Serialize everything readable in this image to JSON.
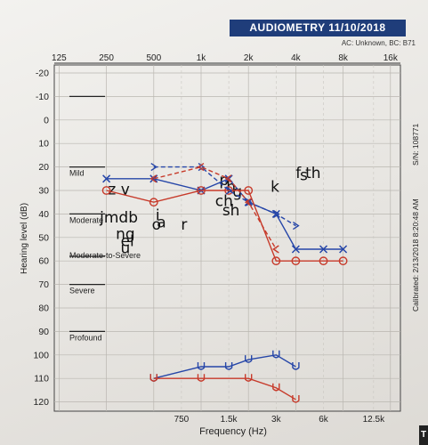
{
  "header": {
    "title": "AUDIOMETRY  11/10/2018",
    "transducer": "AC: Unknown, BC: B71"
  },
  "side": {
    "serial": "S/N: 108771",
    "calibrated": "Calibrated: 2/13/2018 8:20:48 AM"
  },
  "edge_badge": "T",
  "chart_data": {
    "type": "line",
    "xlabel": "Frequency (Hz)",
    "ylabel": "Hearing level (dB)",
    "ylim": [
      -20,
      120
    ],
    "y_reversed": true,
    "y_ticks": [
      -20,
      -10,
      0,
      10,
      20,
      30,
      40,
      50,
      60,
      70,
      80,
      90,
      100,
      110,
      120
    ],
    "x_scale": "log",
    "x_ticks_top": [
      "125",
      "250",
      "500",
      "1k",
      "2k",
      "4k",
      "8k",
      "16k"
    ],
    "x_ticks_bottom": [
      "750",
      "1.5k",
      "3k",
      "6k",
      "12.5k"
    ],
    "grid": true,
    "regions": [
      {
        "label": "Mild",
        "db": 20
      },
      {
        "label": "Moderate",
        "db": 40
      },
      {
        "label": "Moderate-to-Severe",
        "db": 55
      },
      {
        "label": "Severe",
        "db": 70
      },
      {
        "label": "Profound",
        "db": 90
      }
    ],
    "speech_letters": [
      {
        "text": "z v",
        "hz": 300,
        "db": 29
      },
      {
        "text": "jmdb",
        "hz": 300,
        "db": 41
      },
      {
        "text": "ng",
        "hz": 330,
        "db": 48
      },
      {
        "text": "el",
        "hz": 340,
        "db": 51
      },
      {
        "text": "u",
        "hz": 330,
        "db": 54
      },
      {
        "text": "i",
        "hz": 530,
        "db": 40
      },
      {
        "text": "o",
        "hz": 520,
        "db": 44
      },
      {
        "text": "a",
        "hz": 560,
        "db": 43
      },
      {
        "text": "r",
        "hz": 780,
        "db": 44
      },
      {
        "text": "p",
        "hz": 1400,
        "db": 25
      },
      {
        "text": "h",
        "hz": 1550,
        "db": 28
      },
      {
        "text": "g",
        "hz": 1700,
        "db": 30
      },
      {
        "text": "ch",
        "hz": 1400,
        "db": 34
      },
      {
        "text": "sh",
        "hz": 1550,
        "db": 38
      },
      {
        "text": "k",
        "hz": 2950,
        "db": 28
      },
      {
        "text": "f",
        "hz": 4150,
        "db": 22
      },
      {
        "text": "s",
        "hz": 4500,
        "db": 23
      },
      {
        "text": "th",
        "hz": 5150,
        "db": 22
      }
    ],
    "series": [
      {
        "color": "#2646a8",
        "marker": "x",
        "x": [
          250,
          500,
          1000,
          1500,
          2000,
          3000,
          4000,
          6000,
          8000
        ],
        "y": [
          25,
          25,
          30,
          25,
          35,
          40,
          55,
          55,
          55
        ]
      },
      {
        "color": "#c73a2a",
        "marker": "o",
        "x": [
          250,
          500,
          1000,
          1500,
          2000,
          3000,
          4000,
          6000,
          8000
        ],
        "y": [
          30,
          35,
          30,
          30,
          30,
          60,
          60,
          60,
          60
        ]
      },
      {
        "color": "#2646a8",
        "marker": ">",
        "x": [
          500,
          1000,
          1500,
          2000,
          3000,
          4000
        ],
        "y": [
          20,
          20,
          30,
          35,
          40,
          45
        ]
      },
      {
        "color": "#c73a2a",
        "marker": "<",
        "x": [
          500,
          1000,
          1500,
          2000,
          3000
        ],
        "y": [
          25,
          20,
          25,
          35,
          55
        ]
      },
      {
        "color": "#2646a8",
        "marker": "u",
        "x": [
          500,
          1000,
          1500,
          2000,
          3000,
          4000
        ],
        "y": [
          110,
          105,
          105,
          102,
          100,
          105
        ]
      },
      {
        "color": "#c73a2a",
        "marker": "u",
        "x": [
          500,
          1000,
          2000,
          3000,
          4000
        ],
        "y": [
          110,
          110,
          110,
          114,
          119
        ]
      }
    ]
  }
}
